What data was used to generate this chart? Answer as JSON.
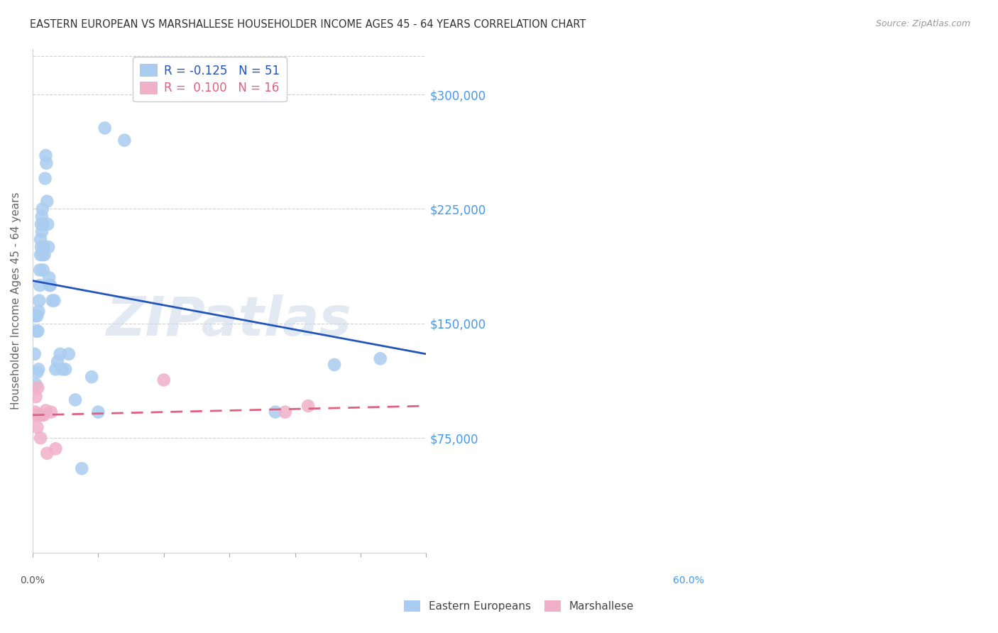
{
  "title": "EASTERN EUROPEAN VS MARSHALLESE HOUSEHOLDER INCOME AGES 45 - 64 YEARS CORRELATION CHART",
  "source": "Source: ZipAtlas.com",
  "ylabel": "Householder Income Ages 45 - 64 years",
  "yticks": [
    75000,
    150000,
    225000,
    300000
  ],
  "ytick_labels": [
    "$75,000",
    "$150,000",
    "$225,000",
    "$300,000"
  ],
  "xmin": 0.0,
  "xmax": 0.6,
  "ymin": 0,
  "ymax": 330000,
  "blue_R": "-0.125",
  "blue_N": "51",
  "pink_R": "0.100",
  "pink_N": "16",
  "blue_scatter_color": "#aaccf0",
  "blue_line_color": "#2255bb",
  "pink_scatter_color": "#f0b0c8",
  "pink_line_color": "#e06080",
  "watermark_text": "ZIPatlas",
  "watermark_color": "#ccd8e8",
  "blue_label": "Eastern Europeans",
  "pink_label": "Marshallese",
  "blue_points_x": [
    0.003,
    0.004,
    0.005,
    0.005,
    0.006,
    0.007,
    0.007,
    0.008,
    0.009,
    0.009,
    0.01,
    0.011,
    0.011,
    0.012,
    0.012,
    0.013,
    0.013,
    0.014,
    0.014,
    0.015,
    0.015,
    0.016,
    0.016,
    0.017,
    0.018,
    0.019,
    0.02,
    0.021,
    0.022,
    0.023,
    0.024,
    0.025,
    0.026,
    0.027,
    0.03,
    0.033,
    0.035,
    0.038,
    0.042,
    0.045,
    0.05,
    0.055,
    0.065,
    0.075,
    0.09,
    0.1,
    0.11,
    0.14,
    0.37,
    0.46,
    0.53
  ],
  "blue_points_y": [
    130000,
    155000,
    110000,
    155000,
    145000,
    118000,
    155000,
    145000,
    120000,
    158000,
    165000,
    175000,
    185000,
    205000,
    195000,
    215000,
    200000,
    220000,
    210000,
    225000,
    195000,
    215000,
    185000,
    200000,
    195000,
    245000,
    260000,
    255000,
    230000,
    215000,
    200000,
    180000,
    175000,
    175000,
    165000,
    165000,
    120000,
    125000,
    130000,
    120000,
    120000,
    130000,
    100000,
    55000,
    115000,
    92000,
    278000,
    270000,
    92000,
    123000,
    127000
  ],
  "pink_points_x": [
    0.003,
    0.004,
    0.005,
    0.007,
    0.008,
    0.01,
    0.012,
    0.014,
    0.017,
    0.02,
    0.022,
    0.028,
    0.035,
    0.2,
    0.385,
    0.42
  ],
  "pink_points_y": [
    90000,
    92000,
    102000,
    82000,
    108000,
    90000,
    75000,
    90000,
    90000,
    93000,
    65000,
    92000,
    68000,
    113000,
    92000,
    96000
  ],
  "blue_line_x0": 0.0,
  "blue_line_y0": 178000,
  "blue_line_x1": 0.6,
  "blue_line_y1": 130000,
  "pink_line_x0": 0.0,
  "pink_line_y0": 90000,
  "pink_line_x1": 0.6,
  "pink_line_y1": 96000
}
